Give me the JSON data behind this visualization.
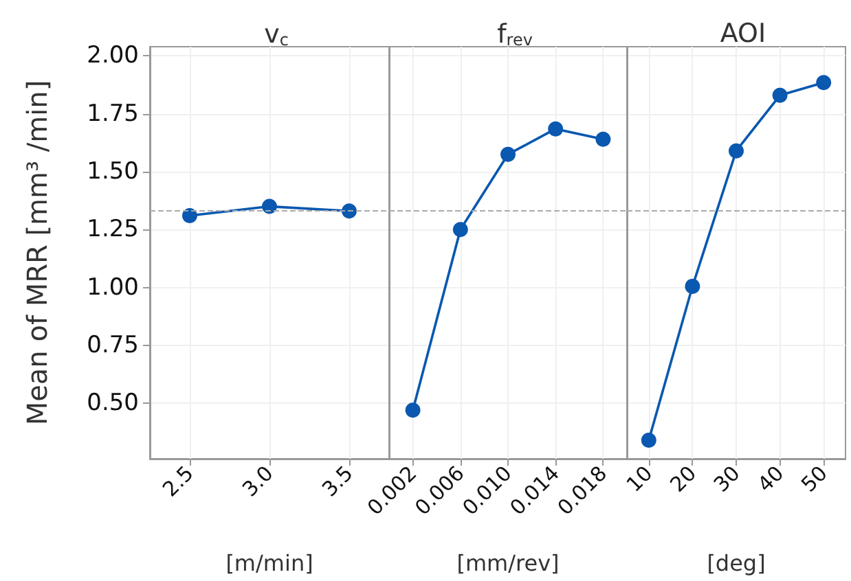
{
  "chart_data": [
    {
      "type": "line",
      "title": "v$_{c}$",
      "categories": [
        "2.5",
        "3.0",
        "3.5"
      ],
      "series": [
        {
          "color": "#0a58b0",
          "values": [
            1.31,
            1.35,
            1.33
          ]
        }
      ],
      "xlabel": "[m/min]",
      "ylabel": "Mean of MRR [mm³ /min]",
      "ylim": [
        0.26,
        2.04
      ],
      "yticks": [
        {
          "value": 0.5,
          "label": "0.50"
        },
        {
          "value": 0.75,
          "label": "0.75"
        },
        {
          "value": 1.0,
          "label": "1.00"
        },
        {
          "value": 1.25,
          "label": "1.25"
        },
        {
          "value": 1.5,
          "label": "1.50"
        },
        {
          "value": 1.75,
          "label": "1.75"
        },
        {
          "value": 2.0,
          "label": "2.00"
        }
      ],
      "grid": true,
      "marker": "circle",
      "ref_lines": [
        {
          "axis": "y",
          "value": 1.33,
          "color": "#aaaaaa",
          "line_style": "dashed"
        }
      ]
    },
    {
      "type": "line",
      "title": "f$_{rev}$",
      "categories": [
        "0.002",
        "0.006",
        "0.010",
        "0.014",
        "0.018"
      ],
      "series": [
        {
          "color": "#0a58b0",
          "values": [
            0.47,
            1.25,
            1.575,
            1.685,
            1.64
          ]
        }
      ],
      "xlabel": "[mm/rev]",
      "ylim": [
        0.26,
        2.04
      ],
      "yticks": [
        0.5,
        0.75,
        1.0,
        1.25,
        1.5,
        1.75,
        2.0
      ],
      "tick_labels": "x",
      "grid": true,
      "marker": "circle",
      "ref_lines": [
        {
          "axis": "y",
          "value": 1.33,
          "color": "#aaaaaa",
          "line_style": "dashed"
        }
      ]
    },
    {
      "type": "line",
      "title": "AOI",
      "categories": [
        "10",
        "20",
        "30",
        "40",
        "50"
      ],
      "series": [
        {
          "color": "#0a58b0",
          "values": [
            0.34,
            1.005,
            1.59,
            1.83,
            1.885
          ]
        }
      ],
      "xlabel": "[deg]",
      "ylim": [
        0.26,
        2.04
      ],
      "yticks": [
        0.5,
        0.75,
        1.0,
        1.25,
        1.5,
        1.75,
        2.0
      ],
      "tick_labels": "x",
      "grid": true,
      "marker": "circle",
      "ref_lines": [
        {
          "axis": "y",
          "value": 1.33,
          "color": "#aaaaaa",
          "line_style": "dashed"
        }
      ]
    }
  ]
}
